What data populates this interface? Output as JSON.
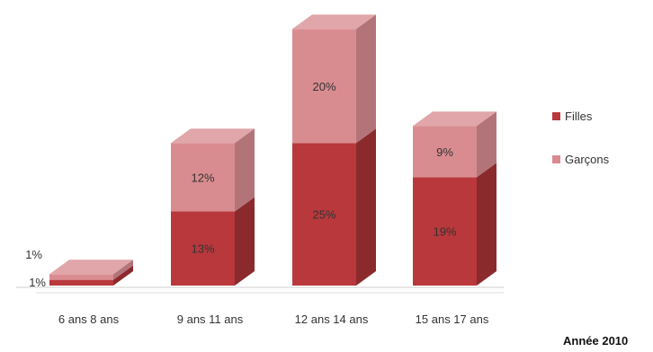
{
  "chart_data": {
    "type": "bar",
    "stacked": true,
    "style": "3d",
    "categories": [
      "6 ans 8 ans",
      "9 ans 11 ans",
      "12 ans 14 ans",
      "15 ans 17 ans"
    ],
    "series": [
      {
        "name": "Filles",
        "values": [
          1,
          13,
          25,
          19
        ],
        "labels": [
          "1%",
          "13%",
          "25%",
          "19%"
        ],
        "color": "#b8383c"
      },
      {
        "name": "Garçons",
        "values": [
          1,
          12,
          20,
          9
        ],
        "labels": [
          "1%",
          "12%",
          "20%",
          "9%"
        ],
        "color": "#d98c90"
      }
    ],
    "legend": "right",
    "grid": false,
    "caption": "Année 2010"
  }
}
